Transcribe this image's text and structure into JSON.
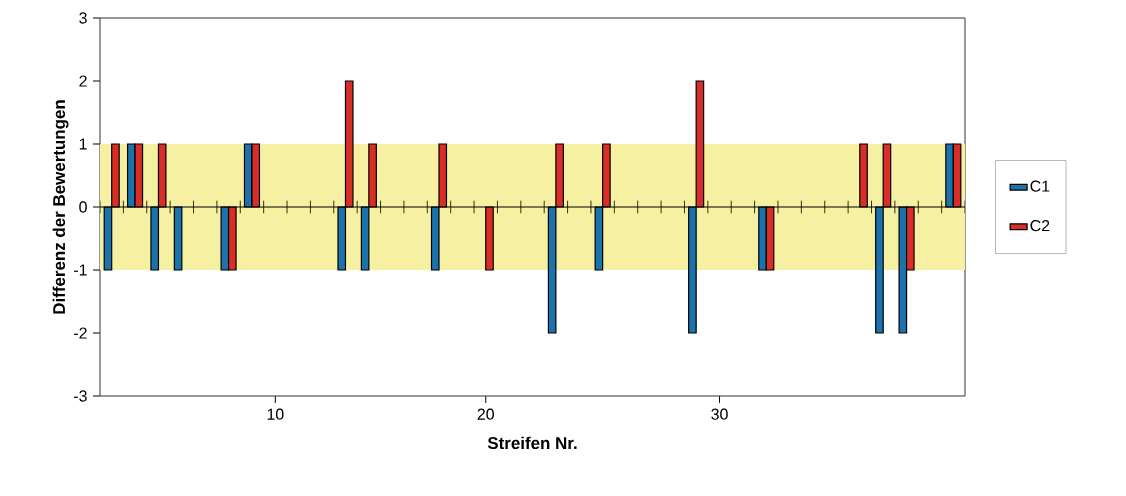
{
  "chart_data": {
    "type": "bar",
    "xlabel": "Streifen Nr.",
    "ylabel": "Differenz der Bewertungen",
    "categories": [
      null,
      null,
      null,
      null,
      null,
      null,
      null,
      "10",
      null,
      null,
      null,
      null,
      null,
      null,
      null,
      null,
      "20",
      null,
      null,
      null,
      null,
      null,
      null,
      null,
      null,
      null,
      "30",
      null,
      null,
      null,
      null,
      null,
      null,
      null,
      null,
      null,
      null
    ],
    "series": [
      {
        "name": "C1",
        "color": "#1b72ad",
        "values": [
          -1,
          1,
          -1,
          -1,
          0,
          -1,
          1,
          0,
          0,
          0,
          -1,
          -1,
          0,
          0,
          -1,
          0,
          0,
          0,
          0,
          -2,
          0,
          -1,
          0,
          0,
          0,
          -2,
          0,
          0,
          -1,
          0,
          0,
          0,
          0,
          -2,
          -2,
          0,
          1
        ]
      },
      {
        "name": "C2",
        "color": "#d92e27",
        "values": [
          1,
          1,
          1,
          0,
          0,
          -1,
          1,
          0,
          0,
          0,
          2,
          1,
          0,
          0,
          1,
          0,
          -1,
          0,
          0,
          1,
          0,
          1,
          0,
          0,
          0,
          2,
          0,
          0,
          -1,
          0,
          0,
          0,
          1,
          1,
          -1,
          0,
          1
        ]
      }
    ],
    "ylim": [
      -3,
      3
    ],
    "yticks": [
      -3,
      -2,
      -1,
      0,
      1,
      2,
      3
    ],
    "bands": [
      {
        "axis": "y",
        "from": -1,
        "to": 1,
        "color": "#f6f0a2"
      }
    ],
    "ref_lines": [
      {
        "axis": "y",
        "value": 0,
        "color": "#000000"
      }
    ],
    "grid": false,
    "legend": "right"
  }
}
